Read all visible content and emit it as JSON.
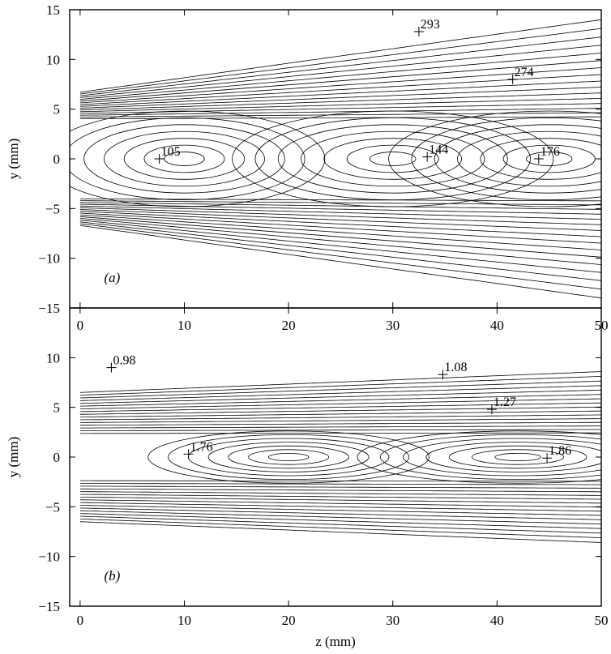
{
  "chart_data": [
    {
      "type": "contour",
      "panel_label": "(a)",
      "xlabel": "",
      "ylabel": "y (mm)",
      "xlim": [
        -1,
        50
      ],
      "ylim": [
        -15,
        15
      ],
      "x_ticks": [
        "0",
        "10",
        "20",
        "30",
        "40",
        "50"
      ],
      "y_ticks": [
        "15",
        "10",
        "5",
        "0",
        "−5",
        "−10",
        "−15"
      ],
      "shape": {
        "x_start": 0.0,
        "y_start_half_width": 6.7,
        "y_end_half_width": 14.0,
        "core_x_end": 14.0,
        "core_half_width": 5.5,
        "core_recirc_centers": [
          [
            10.0,
            0.0
          ],
          [
            30.0,
            0.0
          ],
          [
            45.0,
            0.0
          ]
        ]
      },
      "labeled_contours": [
        {
          "label": "293",
          "x": 32.5,
          "y": 12.8
        },
        {
          "label": "274",
          "x": 41.5,
          "y": 8.0
        },
        {
          "label": "105",
          "x": 7.6,
          "y": 0.0
        },
        {
          "label": "144",
          "x": 33.3,
          "y": 0.2
        },
        {
          "label": "176",
          "x": 44.0,
          "y": 0.0
        }
      ]
    },
    {
      "type": "contour",
      "panel_label": "(b)",
      "xlabel": "z (mm)",
      "ylabel": "y (mm)",
      "xlim": [
        -1,
        50
      ],
      "ylim": [
        -15,
        15
      ],
      "x_ticks": [
        "0",
        "10",
        "20",
        "30",
        "40",
        "50"
      ],
      "y_ticks": [
        "10",
        "5",
        "0",
        "−5",
        "−10",
        "−15"
      ],
      "shape": {
        "x_start": 0.0,
        "y_start_half_width": 6.5,
        "y_end_half_width": 8.6,
        "core_x_end": 9.0,
        "core_half_width": 3.0,
        "core_recirc_centers": [
          [
            20.0,
            0.0
          ],
          [
            42.0,
            0.0
          ]
        ]
      },
      "labeled_contours": [
        {
          "label": "0.98",
          "x": 3.0,
          "y": 9.0
        },
        {
          "label": "1.08",
          "x": 34.8,
          "y": 8.3
        },
        {
          "label": "1.27",
          "x": 39.5,
          "y": 4.8
        },
        {
          "label": "1.76",
          "x": 10.4,
          "y": 0.3
        },
        {
          "label": "1.86",
          "x": 44.8,
          "y": -0.1
        }
      ]
    }
  ]
}
